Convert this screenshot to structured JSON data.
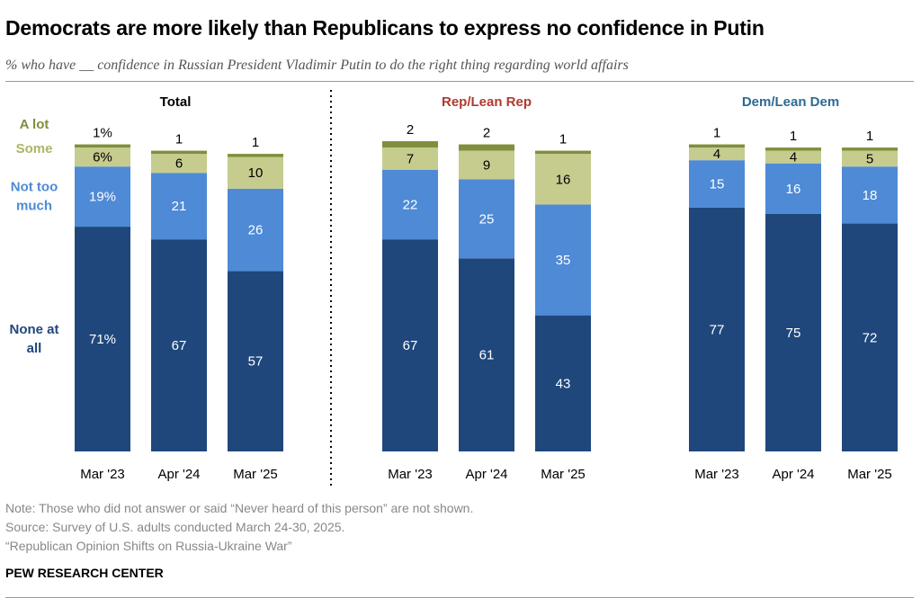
{
  "title": "Democrats are more likely than Republicans to express no confidence in Putin",
  "subtitle": "% who have __ confidence in Russian President Vladimir Putin to do the right thing regarding world affairs",
  "note": "Note: Those who did not answer or said “Never heard of this person” are not shown.",
  "source": "Source: Survey of U.S. adults conducted March 24-30, 2025.",
  "report": "“Republican Opinion Shifts on Russia-Ukraine War”",
  "brand": "PEW RESEARCH CENTER",
  "colors": {
    "none_at_all": "#1f477c",
    "not_too_much": "#4e8ad6",
    "some": "#c6cc8e",
    "a_lot": "#7f8f3c",
    "rep_title": "#b03a2e",
    "dem_title": "#2e6a94"
  },
  "chart_data": {
    "type": "bar",
    "stacked": true,
    "title": "Democrats are more likely than Republicans to express no confidence in Putin",
    "subtitle": "% who have __ confidence in Russian President Vladimir Putin to do the right thing regarding world affairs",
    "categories": [
      "Mar '23",
      "Apr '24",
      "Mar '25"
    ],
    "legend": {
      "placement": "left",
      "entries": [
        {
          "key": "a_lot",
          "label": "A lot"
        },
        {
          "key": "some",
          "label": "Some"
        },
        {
          "key": "not_too_much",
          "label": "Not too much"
        },
        {
          "key": "none_at_all",
          "label": "None at all"
        }
      ]
    },
    "ylim": [
      0,
      100
    ],
    "panels": [
      {
        "name": "Total",
        "title_color": "#000000",
        "series": [
          {
            "key": "none_at_all",
            "name": "None at all",
            "values": [
              71,
              67,
              57
            ],
            "labels": [
              "71%",
              "67",
              "57"
            ]
          },
          {
            "key": "not_too_much",
            "name": "Not too much",
            "values": [
              19,
              21,
              26
            ],
            "labels": [
              "19%",
              "21",
              "26"
            ]
          },
          {
            "key": "some",
            "name": "Some",
            "values": [
              6,
              6,
              10
            ],
            "labels": [
              "6%",
              "6",
              "10"
            ]
          },
          {
            "key": "a_lot",
            "name": "A lot",
            "values": [
              1,
              1,
              1
            ],
            "labels": [
              "1%",
              "1",
              "1"
            ]
          }
        ]
      },
      {
        "name": "Rep/Lean Rep",
        "title_color": "#b03a2e",
        "series": [
          {
            "key": "none_at_all",
            "name": "None at all",
            "values": [
              67,
              61,
              43
            ],
            "labels": [
              "67",
              "61",
              "43"
            ]
          },
          {
            "key": "not_too_much",
            "name": "Not too much",
            "values": [
              22,
              25,
              35
            ],
            "labels": [
              "22",
              "25",
              "35"
            ]
          },
          {
            "key": "some",
            "name": "Some",
            "values": [
              7,
              9,
              16
            ],
            "labels": [
              "7",
              "9",
              "16"
            ]
          },
          {
            "key": "a_lot",
            "name": "A lot",
            "values": [
              2,
              2,
              1
            ],
            "labels": [
              "2",
              "2",
              "1"
            ]
          }
        ]
      },
      {
        "name": "Dem/Lean Dem",
        "title_color": "#2e6a94",
        "series": [
          {
            "key": "none_at_all",
            "name": "None at all",
            "values": [
              77,
              75,
              72
            ],
            "labels": [
              "77",
              "75",
              "72"
            ]
          },
          {
            "key": "not_too_much",
            "name": "Not too much",
            "values": [
              15,
              16,
              18
            ],
            "labels": [
              "15",
              "16",
              "18"
            ]
          },
          {
            "key": "some",
            "name": "Some",
            "values": [
              4,
              4,
              5
            ],
            "labels": [
              "4",
              "4",
              "5"
            ]
          },
          {
            "key": "a_lot",
            "name": "A lot",
            "values": [
              1,
              1,
              1
            ],
            "labels": [
              "1",
              "1",
              "1"
            ]
          }
        ]
      }
    ]
  }
}
